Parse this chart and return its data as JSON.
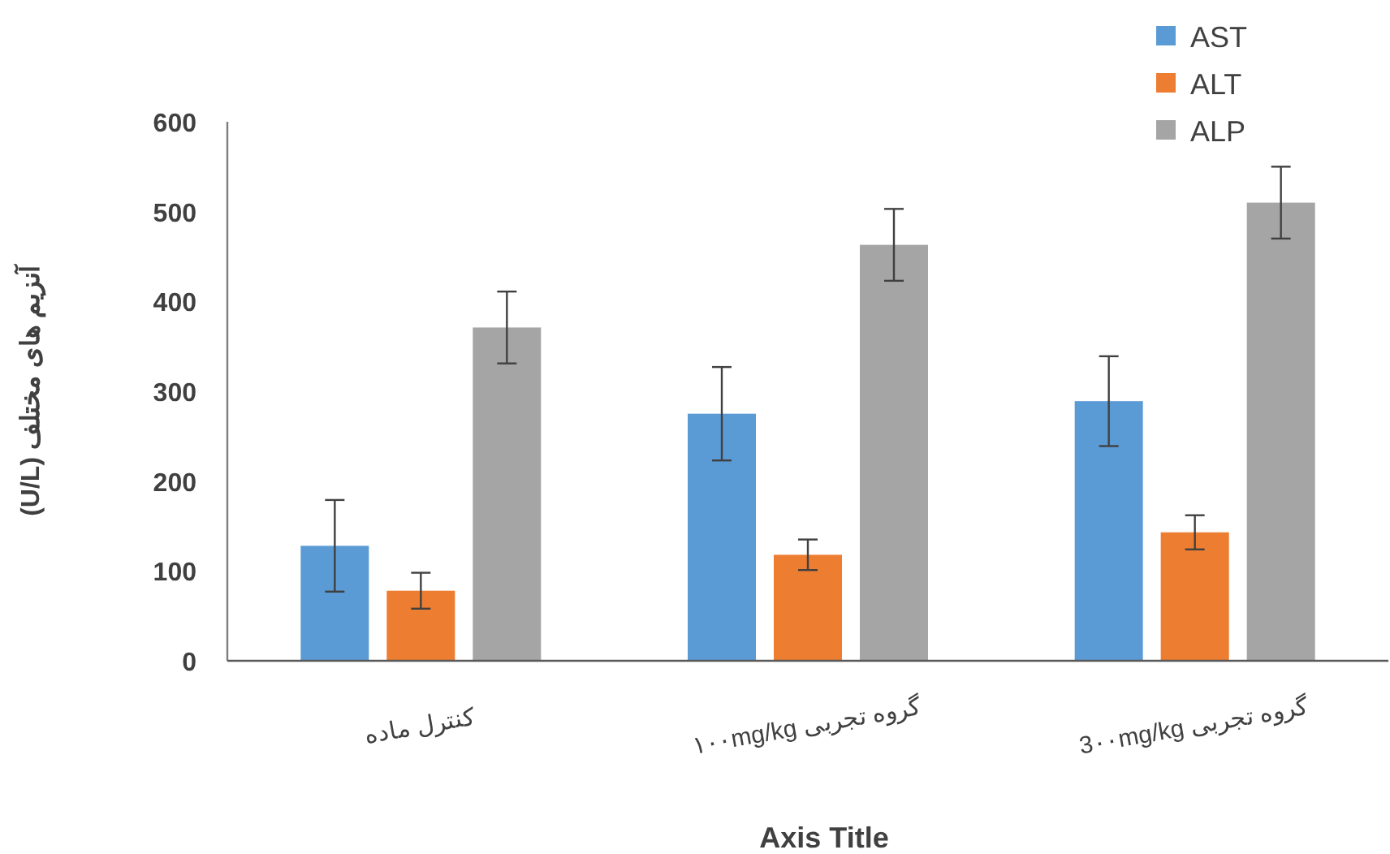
{
  "chart_data": {
    "type": "bar",
    "xlabel": "Axis Title",
    "ylabel": "آنزیم های مختلف (U/L)",
    "categories": [
      "کنترل ماده",
      "گروه تجربی ۱۰۰mg/kg",
      "گروه تجربی 3۰۰mg/kg"
    ],
    "series": [
      {
        "name": "AST",
        "color": "#5b9bd5",
        "values": [
          128,
          275,
          289
        ],
        "errors": [
          51,
          52,
          50
        ]
      },
      {
        "name": "ALT",
        "color": "#ed7d31",
        "values": [
          78,
          118,
          143
        ],
        "errors": [
          20,
          17,
          19
        ]
      },
      {
        "name": "ALP",
        "color": "#a5a5a5",
        "values": [
          371,
          463,
          510
        ],
        "errors": [
          40,
          40,
          40
        ]
      }
    ],
    "ylim": [
      0,
      600
    ],
    "yticks": [
      0,
      100,
      200,
      300,
      400,
      500,
      600
    ],
    "grid": false,
    "legend": "top right"
  }
}
